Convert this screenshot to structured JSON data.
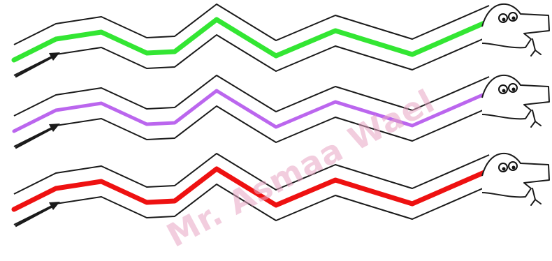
{
  "worksheet": {
    "watermark_text": "Mr. Asmaa Wael",
    "colors": {
      "outline": "#1a1a1a",
      "arrow": "#1a1a1a",
      "watermark": "#e8a6c4"
    },
    "snakes": [
      {
        "name": "snake-1",
        "trace_color": "#33e633",
        "icon": "snake-head-icon"
      },
      {
        "name": "snake-2",
        "trace_color": "#bb66ee",
        "icon": "snake-head-icon"
      },
      {
        "name": "snake-3",
        "trace_color": "#ee1111",
        "icon": "snake-head-icon"
      }
    ]
  }
}
